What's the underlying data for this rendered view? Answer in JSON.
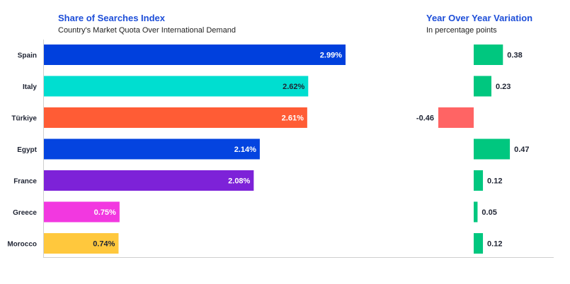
{
  "chart_data": [
    {
      "type": "bar",
      "orientation": "horizontal",
      "title": "Share of Searches Index",
      "subtitle": "Country's Market Quota Over International Demand",
      "categories": [
        "Spain",
        "Italy",
        "Türkiye",
        "Egypt",
        "France",
        "Greece",
        "Morocco"
      ],
      "values": [
        2.99,
        2.62,
        2.61,
        2.14,
        2.08,
        0.75,
        0.74
      ],
      "value_labels": [
        "2.99%",
        "2.62%",
        "2.61%",
        "2.14%",
        "2.08%",
        "0.75%",
        "0.74%"
      ],
      "colors": [
        "#0040dd",
        "#00ded0",
        "#ff5c35",
        "#0444e0",
        "#7d22d8",
        "#f238e0",
        "#ffc83d"
      ],
      "label_colors": [
        "#ffffff",
        "#1f2433",
        "#ffffff",
        "#ffffff",
        "#ffffff",
        "#ffffff",
        "#1f2433"
      ],
      "xlim": [
        0,
        3.2
      ],
      "grid": false
    },
    {
      "type": "bar",
      "orientation": "horizontal",
      "title": "Year Over Year Variation",
      "subtitle": "In percentage points",
      "categories": [
        "Spain",
        "Italy",
        "Türkiye",
        "Egypt",
        "France",
        "Greece",
        "Morocco"
      ],
      "values": [
        0.38,
        0.23,
        -0.46,
        0.47,
        0.12,
        0.05,
        0.12
      ],
      "value_labels": [
        "0.38",
        "0.23",
        "-0.46",
        "0.47",
        "0.12",
        "0.05",
        "0.12"
      ],
      "positive_color": "#00c77f",
      "negative_color": "#ff6464",
      "grid": false
    }
  ]
}
